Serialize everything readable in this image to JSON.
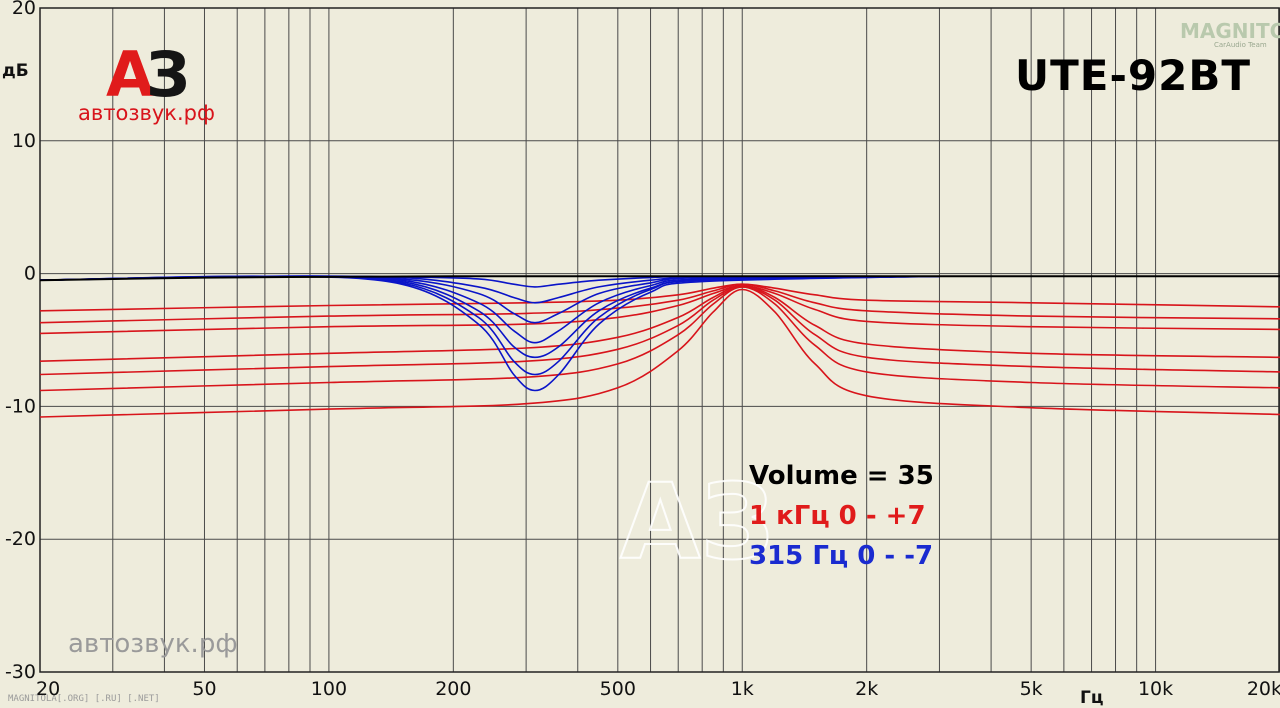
{
  "chart_data": {
    "type": "line",
    "xscale": "log",
    "xlim": [
      20,
      20000
    ],
    "ylim": [
      -30,
      20
    ],
    "grid": true,
    "ylabel": "дБ",
    "xlabel": "Гц",
    "title": "UTE-92BT",
    "y_ticks": [
      {
        "v": 20,
        "label": "20"
      },
      {
        "v": 10,
        "label": "10"
      },
      {
        "v": 0,
        "label": "0"
      },
      {
        "v": -10,
        "label": "-10"
      },
      {
        "v": -20,
        "label": "-20"
      },
      {
        "v": -30,
        "label": "-30"
      }
    ],
    "x_ticks": [
      {
        "v": 20,
        "label": "20"
      },
      {
        "v": 50,
        "label": "50"
      },
      {
        "v": 100,
        "label": "100"
      },
      {
        "v": 200,
        "label": "200"
      },
      {
        "v": 500,
        "label": "500"
      },
      {
        "v": 1000,
        "label": "1k"
      },
      {
        "v": 2000,
        "label": "2k"
      },
      {
        "v": 5000,
        "label": "5k"
      },
      {
        "v": 10000,
        "label": "10k"
      },
      {
        "v": 20000,
        "label": "20k"
      }
    ],
    "series": [
      {
        "color": "#000000",
        "x": [
          20,
          50,
          100,
          200,
          500,
          1000,
          2000,
          5000,
          20000
        ],
        "y": [
          -0.5,
          -0.3,
          -0.25,
          -0.2,
          -0.2,
          -0.2,
          -0.2,
          -0.2,
          -0.2
        ]
      },
      {
        "color": "#0a14c8",
        "x": [
          20,
          70,
          150,
          230,
          280,
          315,
          360,
          450,
          600,
          800,
          3000
        ],
        "y": [
          -0.5,
          -0.2,
          -0.25,
          -0.4,
          -0.8,
          -1.0,
          -0.8,
          -0.5,
          -0.3,
          -0.2,
          -0.2
        ]
      },
      {
        "color": "#0a14c8",
        "x": [
          20,
          70,
          150,
          230,
          280,
          315,
          360,
          450,
          600,
          800,
          3000
        ],
        "y": [
          -0.5,
          -0.2,
          -0.3,
          -1.0,
          -1.8,
          -2.2,
          -1.8,
          -1.0,
          -0.5,
          -0.3,
          -0.2
        ]
      },
      {
        "color": "#0a14c8",
        "x": [
          20,
          70,
          150,
          230,
          280,
          315,
          360,
          450,
          600,
          800,
          3000
        ],
        "y": [
          -0.5,
          -0.2,
          -0.4,
          -1.5,
          -3.0,
          -3.7,
          -3.0,
          -1.5,
          -0.7,
          -0.3,
          -0.2
        ]
      },
      {
        "color": "#0a14c8",
        "x": [
          20,
          70,
          150,
          230,
          280,
          315,
          360,
          450,
          600,
          800,
          3000
        ],
        "y": [
          -0.5,
          -0.2,
          -0.5,
          -2.2,
          -4.3,
          -5.2,
          -4.3,
          -2.2,
          -0.9,
          -0.4,
          -0.2
        ]
      },
      {
        "color": "#0a14c8",
        "x": [
          20,
          70,
          150,
          230,
          280,
          315,
          360,
          450,
          600,
          800,
          3000
        ],
        "y": [
          -0.5,
          -0.2,
          -0.6,
          -2.8,
          -5.5,
          -6.3,
          -5.5,
          -2.8,
          -1.1,
          -0.5,
          -0.2
        ]
      },
      {
        "color": "#0a14c8",
        "x": [
          20,
          70,
          150,
          230,
          280,
          315,
          360,
          450,
          600,
          800,
          3000
        ],
        "y": [
          -0.5,
          -0.2,
          -0.7,
          -3.3,
          -6.6,
          -7.6,
          -6.6,
          -3.3,
          -1.2,
          -0.5,
          -0.2
        ]
      },
      {
        "color": "#0a14c8",
        "x": [
          20,
          70,
          150,
          230,
          280,
          315,
          360,
          450,
          600,
          800,
          3000
        ],
        "y": [
          -0.5,
          -0.2,
          -0.8,
          -3.8,
          -7.6,
          -8.8,
          -7.6,
          -3.8,
          -1.4,
          -0.6,
          -0.2
        ]
      },
      {
        "color": "#d8141b",
        "x": [
          20,
          100,
          300,
          500,
          700,
          850,
          1000,
          1200,
          1500,
          2000,
          5000,
          20000
        ],
        "y": [
          -2.8,
          -2.4,
          -2.2,
          -2.0,
          -1.6,
          -1.1,
          -0.8,
          -1.1,
          -1.6,
          -2.0,
          -2.2,
          -2.5
        ]
      },
      {
        "color": "#d8141b",
        "x": [
          20,
          100,
          300,
          500,
          700,
          850,
          1000,
          1200,
          1500,
          2000,
          5000,
          20000
        ],
        "y": [
          -3.7,
          -3.2,
          -3.0,
          -2.6,
          -2.0,
          -1.3,
          -0.8,
          -1.3,
          -2.2,
          -2.8,
          -3.2,
          -3.4
        ]
      },
      {
        "color": "#d8141b",
        "x": [
          20,
          100,
          300,
          500,
          700,
          850,
          1000,
          1200,
          1500,
          2000,
          5000,
          20000
        ],
        "y": [
          -4.5,
          -4.0,
          -3.8,
          -3.3,
          -2.4,
          -1.5,
          -0.9,
          -1.5,
          -2.7,
          -3.6,
          -4.0,
          -4.2
        ]
      },
      {
        "color": "#d8141b",
        "x": [
          20,
          100,
          300,
          500,
          700,
          850,
          1000,
          1200,
          1500,
          2000,
          5000,
          20000
        ],
        "y": [
          -6.6,
          -6.0,
          -5.6,
          -4.8,
          -3.3,
          -1.8,
          -0.9,
          -1.8,
          -3.9,
          -5.3,
          -6.0,
          -6.3
        ]
      },
      {
        "color": "#d8141b",
        "x": [
          20,
          100,
          300,
          500,
          700,
          850,
          1000,
          1200,
          1500,
          2000,
          5000,
          20000
        ],
        "y": [
          -7.6,
          -7.0,
          -6.6,
          -5.7,
          -3.9,
          -2.0,
          -1.0,
          -2.0,
          -4.6,
          -6.3,
          -7.0,
          -7.4
        ]
      },
      {
        "color": "#d8141b",
        "x": [
          20,
          100,
          300,
          500,
          700,
          850,
          1000,
          1200,
          1500,
          2000,
          5000,
          20000
        ],
        "y": [
          -8.8,
          -8.2,
          -7.8,
          -6.8,
          -4.6,
          -2.3,
          -1.0,
          -2.3,
          -5.4,
          -7.4,
          -8.2,
          -8.6
        ]
      },
      {
        "color": "#d8141b",
        "x": [
          20,
          100,
          300,
          500,
          700,
          850,
          1000,
          1200,
          1500,
          2000,
          5000,
          20000
        ],
        "y": [
          -10.8,
          -10.2,
          -9.8,
          -8.6,
          -5.8,
          -2.9,
          -1.2,
          -2.9,
          -6.8,
          -9.2,
          -10.1,
          -10.6
        ]
      }
    ],
    "annotations": [
      {
        "text": "Volume = 35",
        "color": "#000000"
      },
      {
        "text": "1 кГц  0 - +7",
        "color": "#e01b1b"
      },
      {
        "text": "315 Гц  0 - -7",
        "color": "#1a2bd0"
      }
    ]
  },
  "logo": {
    "main_a": "А",
    "main_z": "З",
    "site": "автозвук.рф",
    "brand": "MAGNITOLA",
    "brand_sub": "CarAudio Team"
  },
  "watermark": {
    "letters": "АЗ",
    "site": "автозвук.рф",
    "footer": "MAGNITOLA[.ORG] [.RU] [.NET]"
  },
  "colors": {
    "background": "#eeecdc",
    "grid": "#4a4a4a",
    "red": "#d8141b",
    "blue": "#0a14c8"
  }
}
